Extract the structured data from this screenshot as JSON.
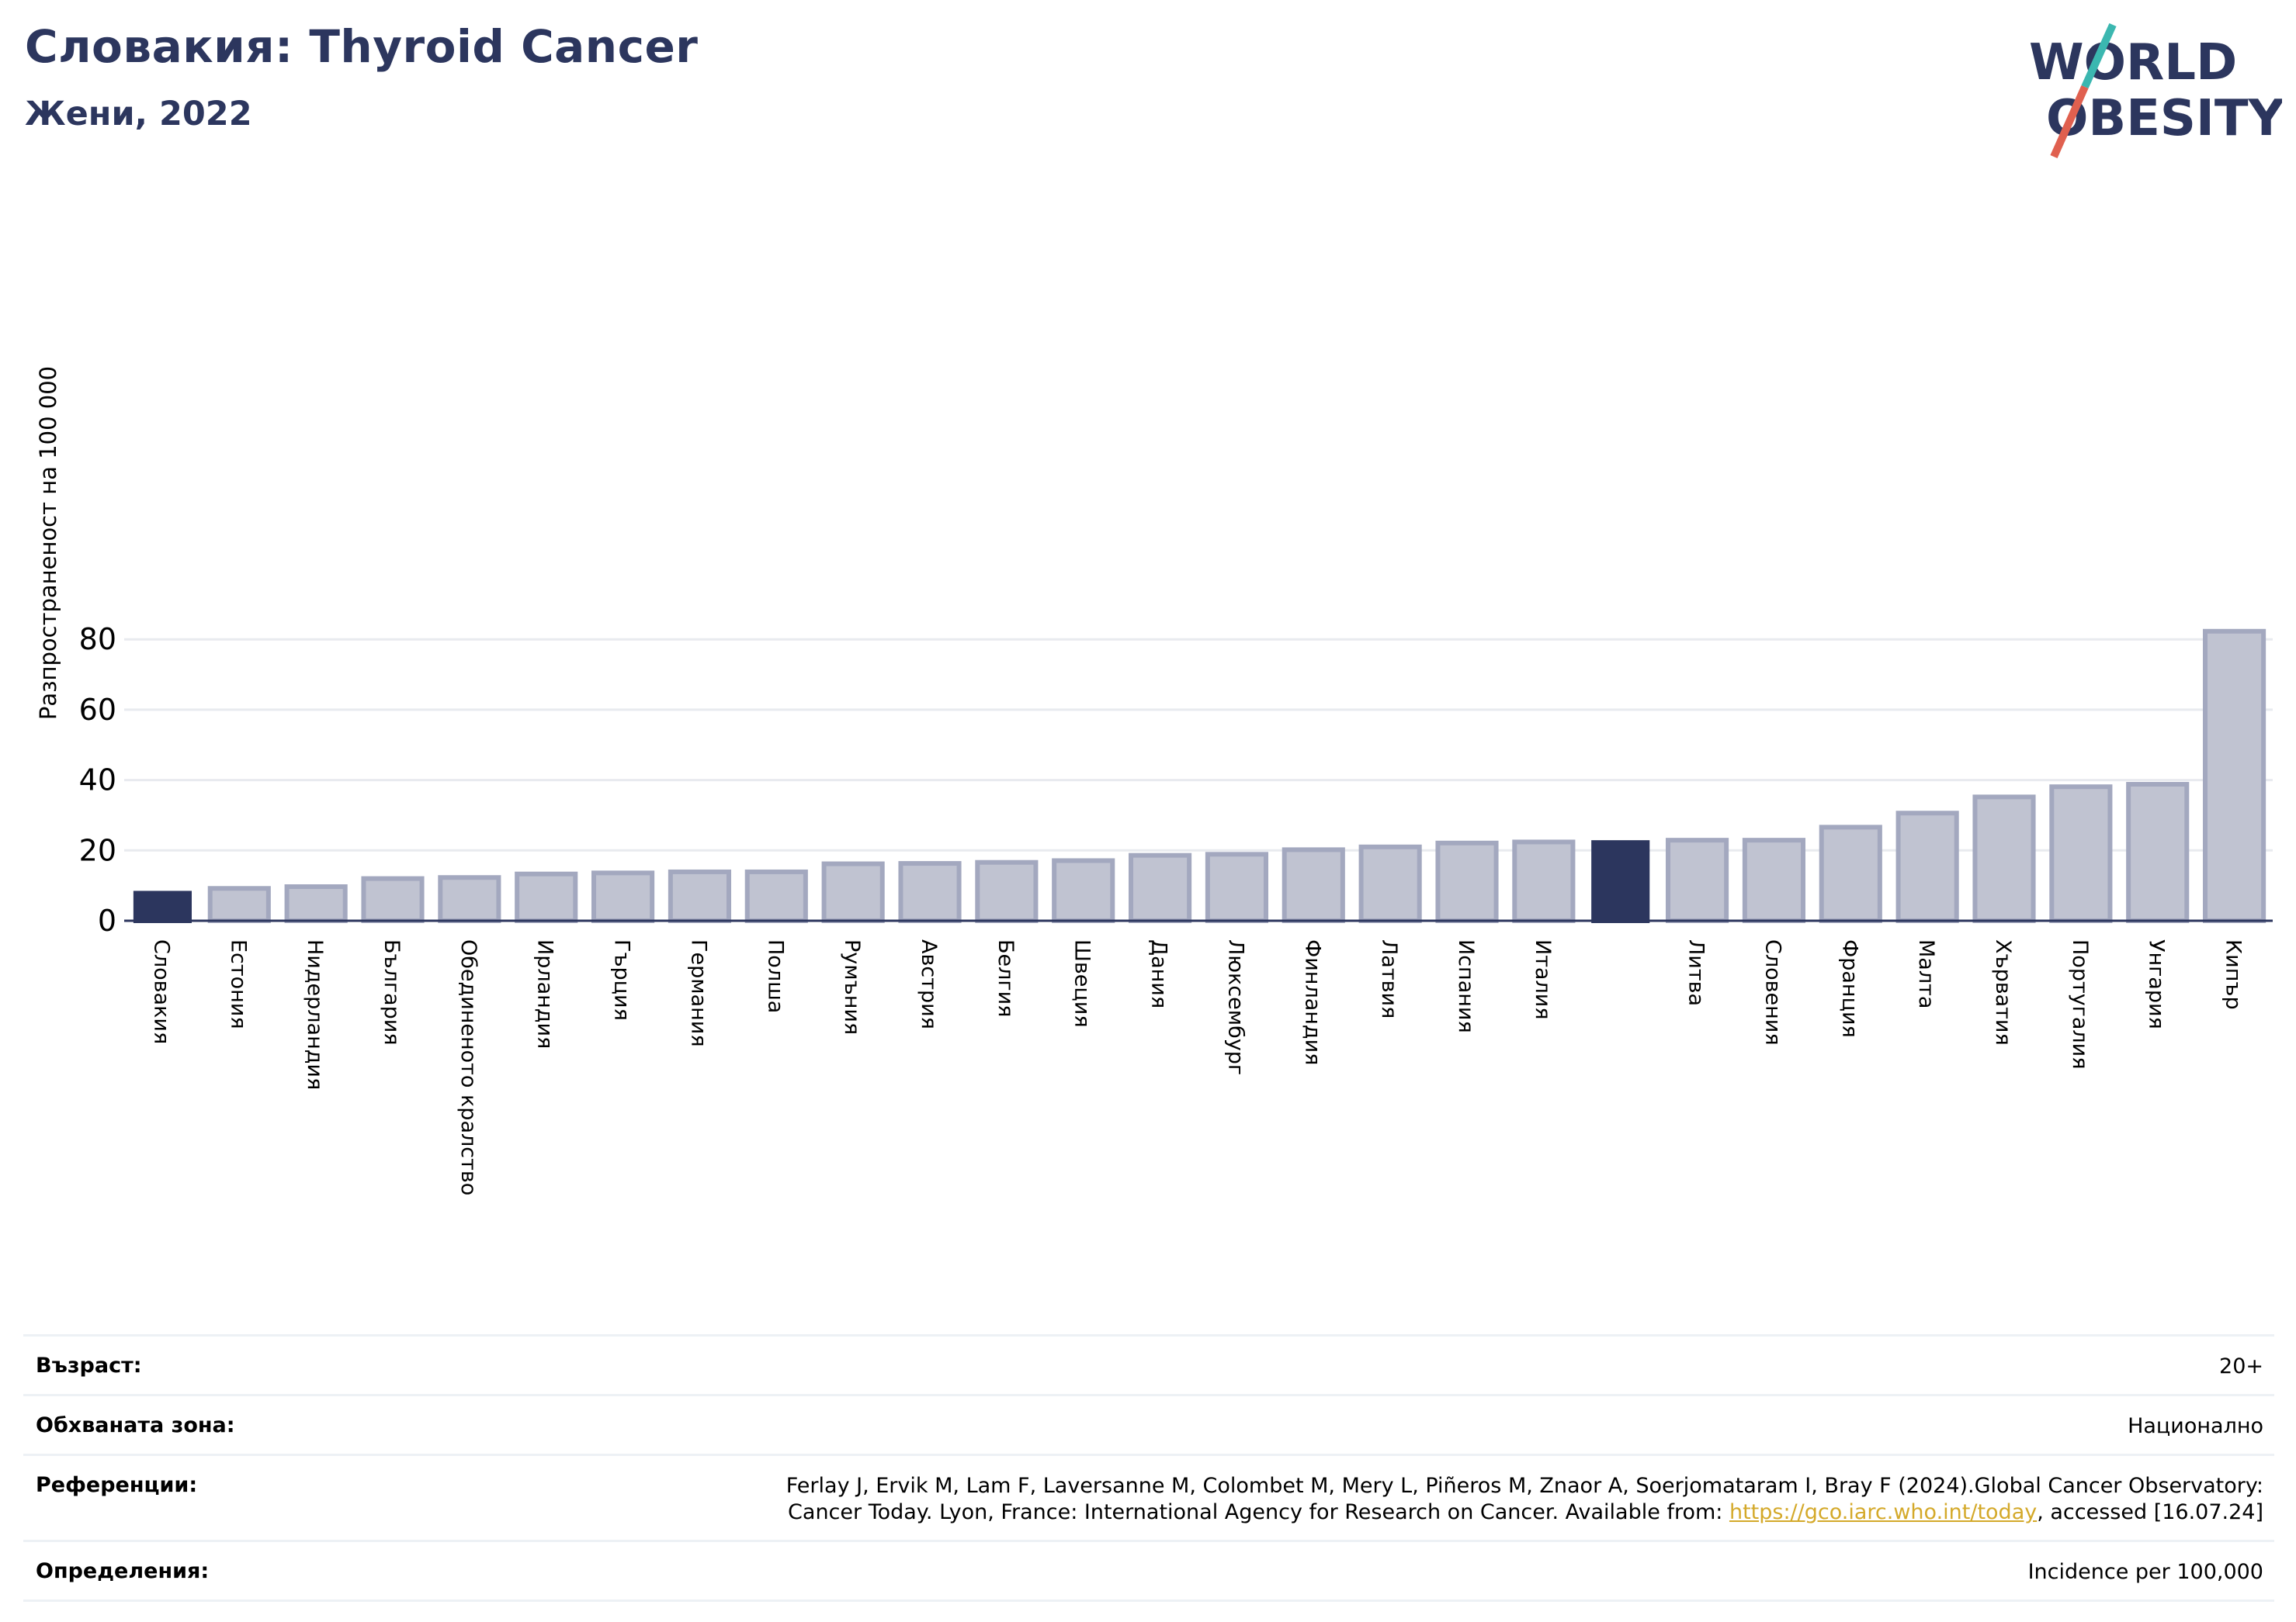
{
  "header": {
    "title": "Словакия: Thyroid Cancer",
    "subtitle": "Жени, 2022"
  },
  "logo": {
    "line1": "WORLD",
    "line2": "OBESITY",
    "colors": {
      "text": "#2c365e",
      "slash_top": "#3bb7b0",
      "slash_bottom": "#e0604f"
    }
  },
  "colors": {
    "highlight_bar": "#2c365e",
    "bar_fill": "#c0c3d1",
    "bar_border": "#a3a8bf",
    "gridline": "#e8eaef",
    "axis": "#2c365e",
    "link": "#d4a92a"
  },
  "chart_data": {
    "type": "bar",
    "ylabel": "Разпространеност  на 100 000",
    "ylim": [
      0,
      85
    ],
    "yticks": [
      0,
      20,
      40,
      60,
      80
    ],
    "grid": true,
    "legend": "none",
    "categories": [
      "Словакия",
      "Естония",
      "Нидерландия",
      "България",
      "Обединеното кралство",
      "Ирландия",
      "Гърция",
      "Германия",
      "Полша",
      "Румъния",
      "Австрия",
      "Белгия",
      "Швеция",
      "Дания",
      "Люксембург",
      "Финландия",
      "Латвия",
      "Испания",
      "Италия",
      "",
      "Литва",
      "Словения",
      "Франция",
      "Малта",
      "Хърватия",
      "Португалия",
      "Унгария",
      "Кипър"
    ],
    "values": [
      8.5,
      9.2,
      9.7,
      12.0,
      12.3,
      13.3,
      13.6,
      13.9,
      13.9,
      16.2,
      16.3,
      16.6,
      17.1,
      18.6,
      18.9,
      20.2,
      21.0,
      22.1,
      22.4,
      22.9,
      22.9,
      22.9,
      26.6,
      30.6,
      35.2,
      38.1,
      38.8,
      82.3
    ],
    "highlight": [
      0,
      19
    ]
  },
  "info": {
    "age_label": "Възраст:",
    "age_value": "20+",
    "coverage_label": "Обхваната зона:",
    "coverage_value": "Национално",
    "references_label": "Референции:",
    "references_line1": "Ferlay J, Ervik M, Lam F, Laversanne M, Colombet M, Mery L, Piñeros M, Znaor A, Soerjomataram I, Bray F (2024).Global Cancer Observatory:",
    "references_line2_pre": "Cancer Today. Lyon, France: International Agency for Research on Cancer. Available from: ",
    "references_link": "https://gco.iarc.who.int/today",
    "references_line2_post": ", accessed [16.07.24]",
    "definitions_label": "Определения:",
    "definitions_value": "Incidence per 100,000"
  }
}
